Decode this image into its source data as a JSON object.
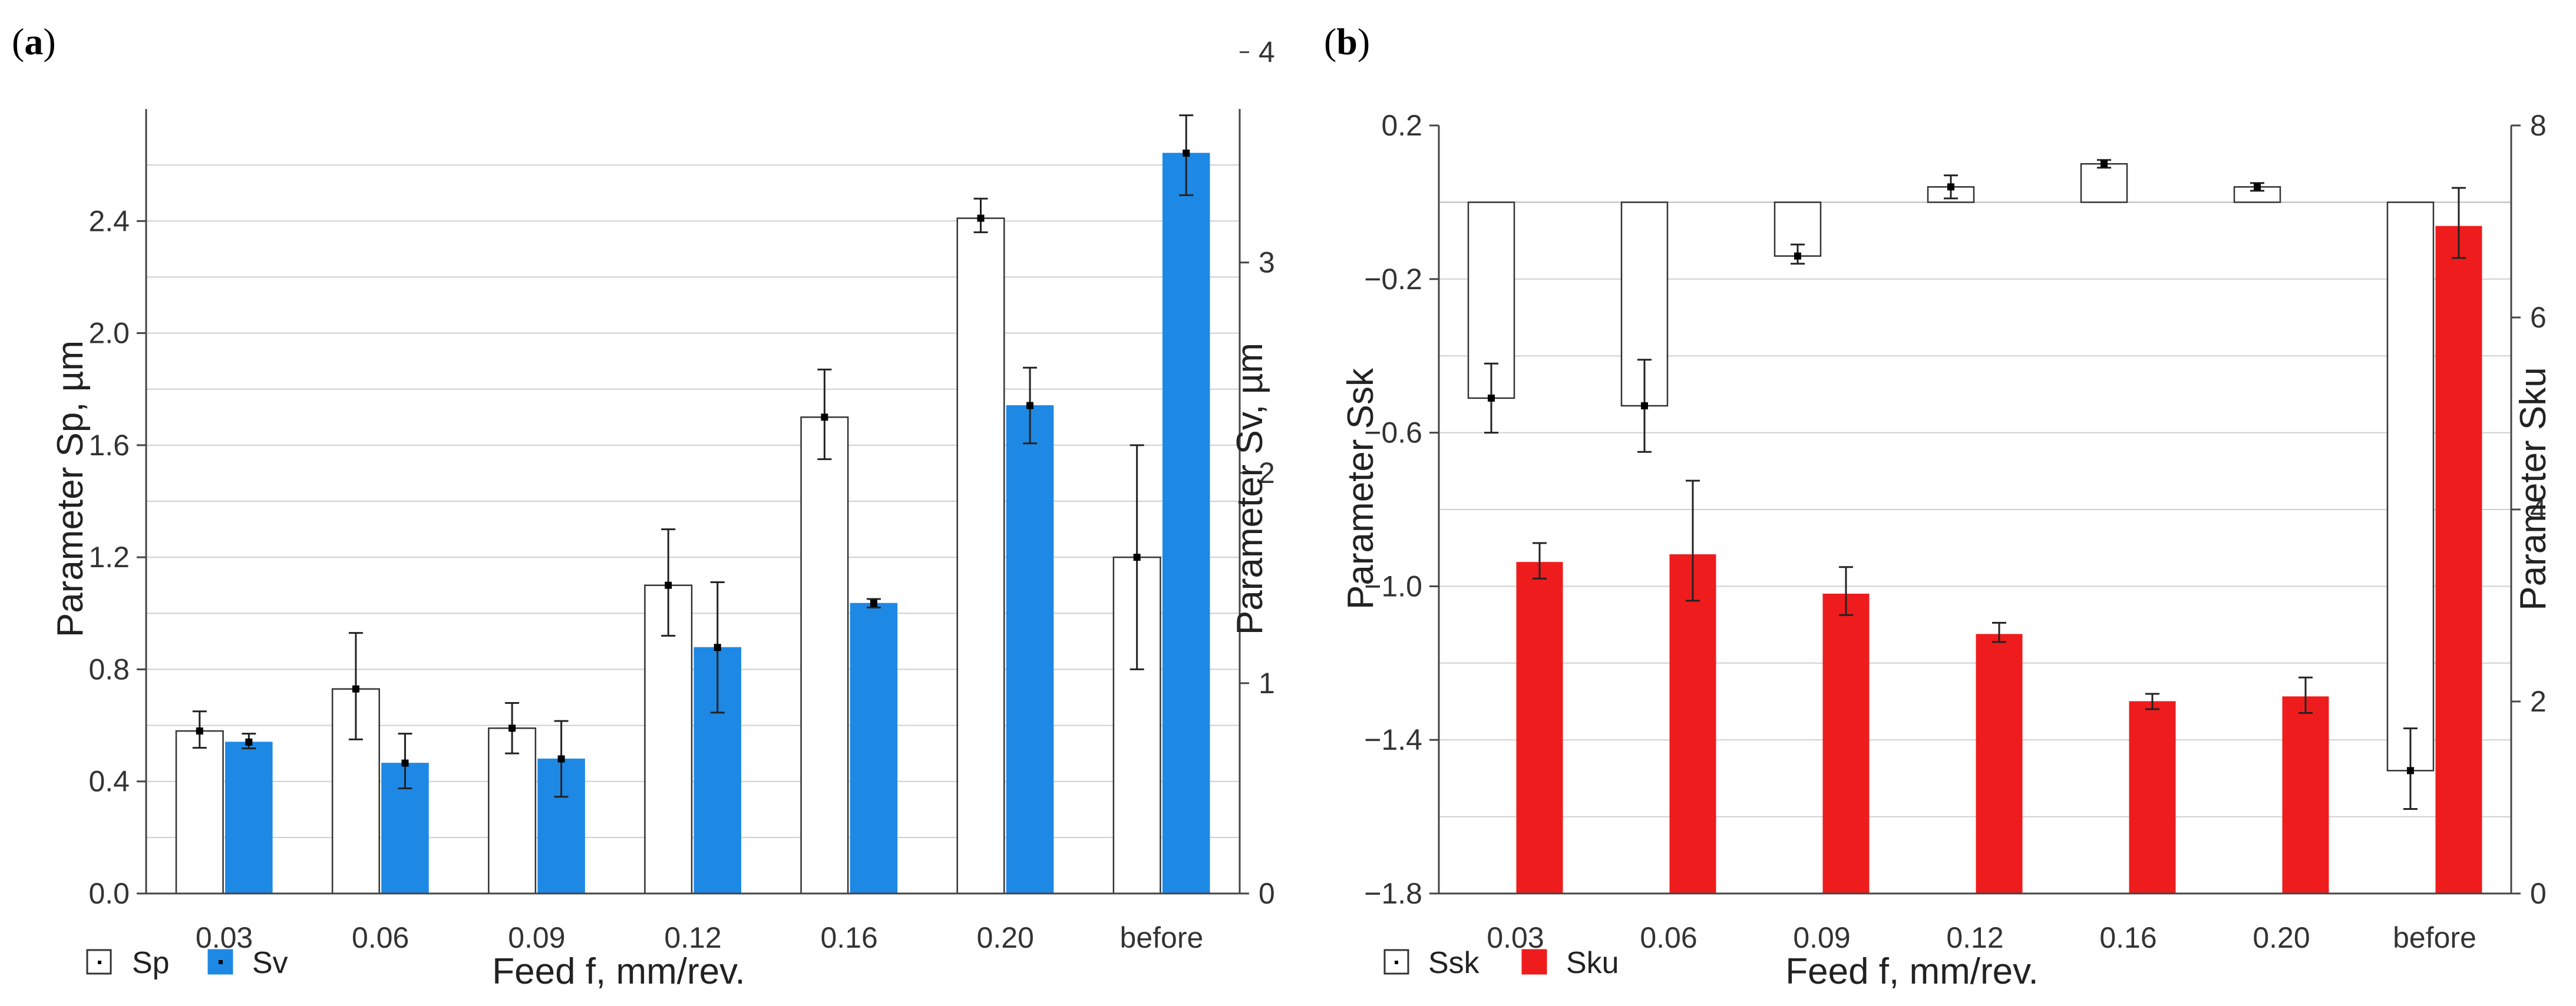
{
  "colors": {
    "white_bar": "#ffffff",
    "blue_bar": "#1e88e5",
    "red_bar": "#ee1c1c",
    "grid": "#cfcfcf",
    "axis": "#444444"
  },
  "chart_data": [
    {
      "type": "bar",
      "panel_prefix": "(",
      "panel_letter": "a",
      "panel_suffix": ")",
      "categories": [
        "0.03",
        "0.06",
        "0.09",
        "0.12",
        "0.16",
        "0.20",
        "before"
      ],
      "xlabel": "Feed f, mm/rev.",
      "ylabel_left": "Parameter Sp, µm",
      "ylabel_right": "Parameter Sv, µm",
      "left_ticks": [
        "0.0",
        "0.4",
        "0.8",
        "1.2",
        "1.6",
        "2.0",
        "2.4"
      ],
      "right_ticks": [
        "0",
        "1",
        "2",
        "3",
        "4"
      ],
      "left_ylim": [
        0,
        2.8
      ],
      "right_ylim": [
        0,
        3.73
      ],
      "grid_step": 0.2,
      "legend": [
        "Sp",
        "Sv"
      ],
      "series": [
        {
          "name": "Sp",
          "axis": "left",
          "fill": "white",
          "values": [
            0.58,
            0.73,
            0.59,
            1.1,
            1.7,
            2.41,
            1.2
          ],
          "err_low": [
            0.52,
            0.55,
            0.5,
            0.92,
            1.55,
            2.36,
            0.8
          ],
          "err_high": [
            0.65,
            0.93,
            0.68,
            1.3,
            1.87,
            2.48,
            1.6
          ]
        },
        {
          "name": "Sv",
          "axis": "right",
          "fill": "blue",
          "values": [
            0.72,
            0.62,
            0.64,
            1.17,
            1.38,
            2.32,
            3.52
          ],
          "err_low": [
            0.69,
            0.5,
            0.46,
            0.86,
            1.36,
            2.14,
            3.32
          ],
          "err_high": [
            0.76,
            0.76,
            0.82,
            1.48,
            1.4,
            2.5,
            3.7
          ]
        }
      ]
    },
    {
      "type": "bar",
      "panel_prefix": "(",
      "panel_letter": "b",
      "panel_suffix": ")",
      "categories": [
        "0.03",
        "0.06",
        "0.09",
        "0.12",
        "0.16",
        "0.20",
        "before"
      ],
      "xlabel": "Feed f, mm/rev.",
      "ylabel_left": "Parameter Ssk",
      "ylabel_right": "Parameter Sku",
      "left_ticks": [
        "−1.8",
        "−1.4",
        "−1.0",
        "−0.6",
        "−0.2",
        "0.2"
      ],
      "right_ticks": [
        "0",
        "2",
        "4",
        "6",
        "8"
      ],
      "left_ylim": [
        -1.8,
        0.2
      ],
      "right_ylim": [
        0,
        8
      ],
      "left_baseline": 0,
      "grid_step": 0.2,
      "legend": [
        "Ssk",
        "Sku"
      ],
      "series": [
        {
          "name": "Ssk",
          "axis": "left",
          "fill": "white",
          "values": [
            -0.51,
            -0.53,
            -0.14,
            0.04,
            0.1,
            0.04,
            -1.48
          ],
          "err_low": [
            -0.6,
            -0.65,
            -0.16,
            0.01,
            0.09,
            0.03,
            -1.58
          ],
          "err_high": [
            -0.42,
            -0.41,
            -0.11,
            0.07,
            0.11,
            0.05,
            -1.37
          ]
        },
        {
          "name": "Sku",
          "axis": "right",
          "fill": "red",
          "values": [
            3.45,
            3.53,
            3.12,
            2.7,
            2.0,
            2.05,
            6.95
          ],
          "err_low": [
            3.28,
            3.05,
            2.9,
            2.62,
            1.92,
            1.88,
            6.62
          ],
          "err_high": [
            3.65,
            4.3,
            3.4,
            2.82,
            2.08,
            2.25,
            7.35
          ]
        }
      ]
    }
  ]
}
